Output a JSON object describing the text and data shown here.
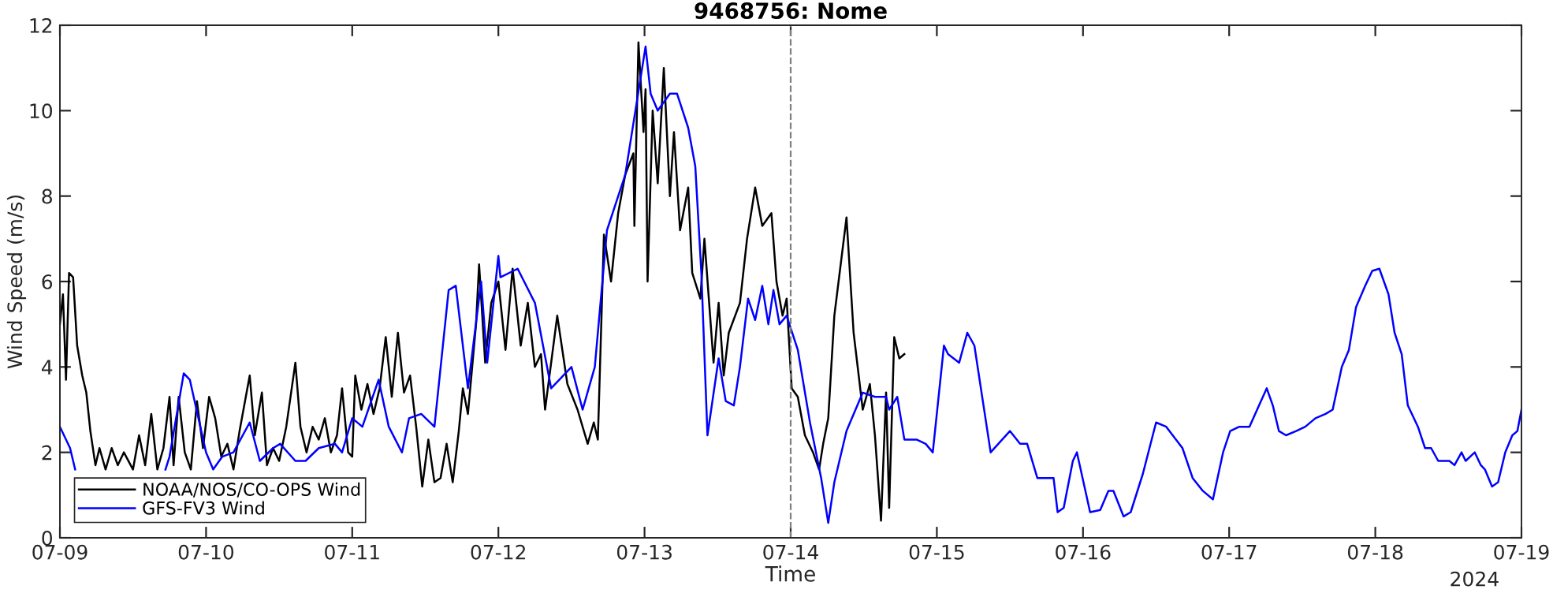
{
  "chart_data": {
    "type": "line",
    "title": "9468756: Nome",
    "xlabel": "Time",
    "ylabel": "Wind Speed (m/s)",
    "annotations": [
      "2024"
    ],
    "xlim": [
      "2024-07-09",
      "2024-07-19"
    ],
    "xticks": [
      {
        "value": "2024-07-09",
        "label": "07-09"
      },
      {
        "value": "2024-07-10",
        "label": "07-10"
      },
      {
        "value": "2024-07-11",
        "label": "07-11"
      },
      {
        "value": "2024-07-12",
        "label": "07-12"
      },
      {
        "value": "2024-07-13",
        "label": "07-13"
      },
      {
        "value": "2024-07-14",
        "label": "07-14"
      },
      {
        "value": "2024-07-15",
        "label": "07-15"
      },
      {
        "value": "2024-07-16",
        "label": "07-16"
      },
      {
        "value": "2024-07-17",
        "label": "07-17"
      },
      {
        "value": "2024-07-18",
        "label": "07-18"
      },
      {
        "value": "2024-07-19",
        "label": "07-19"
      }
    ],
    "ylim": [
      0,
      12
    ],
    "yticks": [
      0,
      2,
      4,
      6,
      8,
      10,
      12
    ],
    "grid": false,
    "legend": "bottom left",
    "line_style": "solid",
    "marker": "none",
    "ref_lines": [
      {
        "axis": "x",
        "value": "2024-07-14",
        "color": "#7f7f7f",
        "line_style": "dashed"
      }
    ],
    "series": [
      {
        "name": "NOAA/NOS/CO-OPS Wind",
        "color": "#000000",
        "x": [
          "2024-07-09T00:00",
          "2024-07-09T00:30",
          "2024-07-09T01:00",
          "2024-07-09T01:30",
          "2024-07-09T02:10",
          "2024-07-09T02:50",
          "2024-07-09T03:40",
          "2024-07-09T04:20",
          "2024-07-09T05:00",
          "2024-07-09T05:50",
          "2024-07-09T06:30",
          "2024-07-09T07:30",
          "2024-07-09T08:30",
          "2024-07-09T09:30",
          "2024-07-09T10:30",
          "2024-07-09T12:00",
          "2024-07-09T13:00",
          "2024-07-09T14:00",
          "2024-07-09T15:00",
          "2024-07-09T16:00",
          "2024-07-09T17:00",
          "2024-07-09T18:00",
          "2024-07-09T18:40",
          "2024-07-09T19:30",
          "2024-07-09T20:30",
          "2024-07-09T21:30",
          "2024-07-09T22:30",
          "2024-07-09T23:30",
          "2024-07-10T00:30",
          "2024-07-10T01:30",
          "2024-07-10T02:30",
          "2024-07-10T03:30",
          "2024-07-10T04:30",
          "2024-07-10T05:30",
          "2024-07-10T07:10",
          "2024-07-10T08:00",
          "2024-07-10T09:10",
          "2024-07-10T10:00",
          "2024-07-10T11:00",
          "2024-07-10T12:00",
          "2024-07-10T13:10",
          "2024-07-10T14:40",
          "2024-07-10T15:30",
          "2024-07-10T16:30",
          "2024-07-10T17:30",
          "2024-07-10T18:30",
          "2024-07-10T19:30",
          "2024-07-10T20:30",
          "2024-07-10T21:30",
          "2024-07-10T22:20",
          "2024-07-10T23:20",
          "2024-07-11T00:00",
          "2024-07-11T00:30",
          "2024-07-11T01:30",
          "2024-07-11T02:30",
          "2024-07-11T03:30",
          "2024-07-11T04:30",
          "2024-07-11T05:30",
          "2024-07-11T06:30",
          "2024-07-11T07:30",
          "2024-07-11T08:30",
          "2024-07-11T09:30",
          "2024-07-11T10:30",
          "2024-07-11T11:30",
          "2024-07-11T12:30",
          "2024-07-11T13:30",
          "2024-07-11T14:30",
          "2024-07-11T15:30",
          "2024-07-11T16:30",
          "2024-07-11T17:30",
          "2024-07-11T18:10",
          "2024-07-11T19:00",
          "2024-07-11T20:20",
          "2024-07-11T20:50",
          "2024-07-11T21:50",
          "2024-07-11T22:50",
          "2024-07-12T00:00",
          "2024-07-12T01:10",
          "2024-07-12T02:20",
          "2024-07-12T03:40",
          "2024-07-12T04:50",
          "2024-07-12T06:00",
          "2024-07-12T07:00",
          "2024-07-12T07:40",
          "2024-07-12T09:40",
          "2024-07-12T11:20",
          "2024-07-12T13:00",
          "2024-07-12T14:40",
          "2024-07-12T15:40",
          "2024-07-12T16:20",
          "2024-07-12T17:20",
          "2024-07-12T18:30",
          "2024-07-12T19:40",
          "2024-07-12T20:50",
          "2024-07-12T22:10",
          "2024-07-12T22:20",
          "2024-07-12T23:00",
          "2024-07-12T23:50",
          "2024-07-13T00:10",
          "2024-07-13T00:30",
          "2024-07-13T01:20",
          "2024-07-13T02:10",
          "2024-07-13T03:10",
          "2024-07-13T04:10",
          "2024-07-13T04:50",
          "2024-07-13T05:50",
          "2024-07-13T07:10",
          "2024-07-13T07:50",
          "2024-07-13T09:10",
          "2024-07-13T09:50",
          "2024-07-13T11:20",
          "2024-07-13T12:10",
          "2024-07-13T13:00",
          "2024-07-13T13:50",
          "2024-07-13T15:40",
          "2024-07-13T16:50",
          "2024-07-13T18:10",
          "2024-07-13T19:20",
          "2024-07-13T20:50",
          "2024-07-13T21:40",
          "2024-07-13T22:40",
          "2024-07-13T23:20",
          "2024-07-14T00:10",
          "2024-07-14T01:10",
          "2024-07-14T02:20",
          "2024-07-14T03:40",
          "2024-07-14T04:40",
          "2024-07-14T05:20",
          "2024-07-14T06:10",
          "2024-07-14T07:10",
          "2024-07-14T09:10",
          "2024-07-14T10:20",
          "2024-07-14T11:50",
          "2024-07-14T13:00",
          "2024-07-14T13:50",
          "2024-07-14T14:50",
          "2024-07-14T15:40",
          "2024-07-14T16:10",
          "2024-07-14T17:00",
          "2024-07-14T17:50",
          "2024-07-14T18:40"
        ],
        "values": [
          5.0,
          5.7,
          3.7,
          6.2,
          6.1,
          4.5,
          3.8,
          3.4,
          2.5,
          1.7,
          2.1,
          1.6,
          2.1,
          1.7,
          2.0,
          1.6,
          2.4,
          1.7,
          2.9,
          1.6,
          2.1,
          3.3,
          1.7,
          3.3,
          2.0,
          1.6,
          3.2,
          2.1,
          3.3,
          2.8,
          1.9,
          2.2,
          1.6,
          2.5,
          3.8,
          2.4,
          3.4,
          1.7,
          2.1,
          1.8,
          2.6,
          4.1,
          2.6,
          2.0,
          2.6,
          2.3,
          2.8,
          2.0,
          2.4,
          3.5,
          2.0,
          1.9,
          3.8,
          3.0,
          3.6,
          2.9,
          3.5,
          4.7,
          3.3,
          4.8,
          3.4,
          3.8,
          2.6,
          1.2,
          2.3,
          1.3,
          1.4,
          2.2,
          1.3,
          2.5,
          3.5,
          2.9,
          5.0,
          6.4,
          4.1,
          5.5,
          6.0,
          4.4,
          6.3,
          4.5,
          5.5,
          4.0,
          4.3,
          3.0,
          5.2,
          3.6,
          3.0,
          2.2,
          2.7,
          2.3,
          7.1,
          6.0,
          7.6,
          8.5,
          9.0,
          7.3,
          11.6,
          9.5,
          10.5,
          6.0,
          10.0,
          8.3,
          11.0,
          8.0,
          9.5,
          7.2,
          8.2,
          6.2,
          5.6,
          7.0,
          4.1,
          5.5,
          3.8,
          4.8,
          5.5,
          7.0,
          8.2,
          7.3,
          7.6,
          6.0,
          5.2,
          5.6,
          3.5,
          3.3,
          2.4,
          2.0,
          1.6,
          2.2,
          2.8,
          5.2,
          7.5,
          4.8,
          3.0,
          3.6,
          2.4,
          0.4,
          3.4,
          0.7,
          4.7,
          4.2,
          4.3
        ]
      },
      {
        "name": "GFS-FV3 Wind",
        "color": "#0000ff",
        "x": [
          "2024-07-09T00:00",
          "2024-07-09T01:40",
          "2024-07-09T02:30",
          "2024-07-09T10:00",
          "2024-07-09T17:20",
          "2024-07-09T18:00",
          "2024-07-09T20:20",
          "2024-07-09T21:20",
          "2024-07-10T00:00",
          "2024-07-10T01:10",
          "2024-07-10T02:40",
          "2024-07-10T04:30",
          "2024-07-10T07:10",
          "2024-07-10T08:50",
          "2024-07-10T11:00",
          "2024-07-10T12:10",
          "2024-07-10T14:40",
          "2024-07-10T16:20",
          "2024-07-10T18:30",
          "2024-07-10T21:10",
          "2024-07-10T22:20",
          "2024-07-11T00:00",
          "2024-07-11T01:40",
          "2024-07-11T04:20",
          "2024-07-11T06:00",
          "2024-07-11T08:10",
          "2024-07-11T09:20",
          "2024-07-11T11:20",
          "2024-07-11T13:30",
          "2024-07-11T15:50",
          "2024-07-11T17:00",
          "2024-07-11T19:00",
          "2024-07-11T21:10",
          "2024-07-11T22:10",
          "2024-07-12T00:00",
          "2024-07-12T00:20",
          "2024-07-12T03:10",
          "2024-07-12T06:00",
          "2024-07-12T08:40",
          "2024-07-12T12:00",
          "2024-07-12T13:50",
          "2024-07-12T15:50",
          "2024-07-12T17:50",
          "2024-07-12T20:50",
          "2024-07-13T00:10",
          "2024-07-13T01:00",
          "2024-07-13T02:10",
          "2024-07-13T04:10",
          "2024-07-13T05:20",
          "2024-07-13T07:10",
          "2024-07-13T08:20",
          "2024-07-13T09:20",
          "2024-07-13T10:20",
          "2024-07-13T12:10",
          "2024-07-13T13:20",
          "2024-07-13T14:40",
          "2024-07-13T15:40",
          "2024-07-13T17:00",
          "2024-07-13T18:10",
          "2024-07-13T19:20",
          "2024-07-13T20:20",
          "2024-07-13T21:10",
          "2024-07-13T22:10",
          "2024-07-13T23:20",
          "2024-07-14T01:10",
          "2024-07-14T03:10",
          "2024-07-14T05:00",
          "2024-07-14T06:10",
          "2024-07-14T07:10",
          "2024-07-14T09:10",
          "2024-07-14T11:50",
          "2024-07-14T13:50",
          "2024-07-14T15:40",
          "2024-07-14T16:10",
          "2024-07-14T17:30",
          "2024-07-14T18:40",
          "2024-07-14T20:40",
          "2024-07-14T22:10",
          "2024-07-14T23:20",
          "2024-07-15T01:10",
          "2024-07-15T01:50",
          "2024-07-15T03:40",
          "2024-07-15T05:00",
          "2024-07-15T06:10",
          "2024-07-15T08:50",
          "2024-07-15T12:00",
          "2024-07-15T13:40",
          "2024-07-15T14:50",
          "2024-07-15T16:30",
          "2024-07-15T19:10",
          "2024-07-15T19:50",
          "2024-07-15T20:50",
          "2024-07-15T22:20",
          "2024-07-15T23:00",
          "2024-07-16T01:10",
          "2024-07-16T02:50",
          "2024-07-16T04:10",
          "2024-07-16T05:00",
          "2024-07-16T06:40",
          "2024-07-16T07:50",
          "2024-07-16T09:50",
          "2024-07-16T12:00",
          "2024-07-16T13:40",
          "2024-07-16T16:20",
          "2024-07-16T18:00",
          "2024-07-16T19:40",
          "2024-07-16T21:20",
          "2024-07-16T23:00",
          "2024-07-17T00:10",
          "2024-07-17T01:40",
          "2024-07-17T03:20",
          "2024-07-17T06:10",
          "2024-07-17T07:10",
          "2024-07-17T08:10",
          "2024-07-17T09:20",
          "2024-07-17T11:00",
          "2024-07-17T12:30",
          "2024-07-17T14:10",
          "2024-07-17T15:50",
          "2024-07-17T17:00",
          "2024-07-17T18:30",
          "2024-07-17T19:40",
          "2024-07-17T20:50",
          "2024-07-17T22:20",
          "2024-07-17T23:30",
          "2024-07-18T00:40",
          "2024-07-18T02:10",
          "2024-07-18T03:10",
          "2024-07-18T04:20",
          "2024-07-18T05:20",
          "2024-07-18T07:00",
          "2024-07-18T08:10",
          "2024-07-18T09:10",
          "2024-07-18T10:20",
          "2024-07-18T12:10",
          "2024-07-18T13:00",
          "2024-07-18T14:10",
          "2024-07-18T14:50",
          "2024-07-18T16:20",
          "2024-07-18T17:20",
          "2024-07-18T18:00",
          "2024-07-18T19:10",
          "2024-07-18T20:10",
          "2024-07-18T21:20",
          "2024-07-18T22:30",
          "2024-07-18T23:20",
          "2024-07-19T00:00"
        ],
        "values": [
          2.6,
          2.1,
          1.6,
          null,
          1.6,
          1.9,
          3.85,
          3.7,
          2.0,
          1.6,
          1.9,
          2.0,
          2.7,
          1.8,
          2.1,
          2.2,
          1.8,
          1.8,
          2.1,
          2.2,
          2.0,
          2.8,
          2.6,
          3.7,
          2.6,
          2.0,
          2.8,
          2.9,
          2.6,
          5.8,
          5.9,
          3.5,
          6.0,
          4.1,
          6.6,
          6.1,
          6.3,
          5.5,
          3.5,
          4.0,
          3.0,
          4.0,
          7.2,
          8.5,
          11.5,
          10.4,
          10.0,
          10.4,
          10.4,
          9.6,
          8.7,
          6.2,
          2.4,
          4.2,
          3.2,
          3.1,
          4.0,
          5.6,
          5.1,
          5.9,
          5.0,
          5.8,
          5.0,
          5.2,
          4.4,
          2.7,
          1.4,
          0.35,
          1.3,
          2.5,
          3.4,
          3.3,
          3.3,
          3.0,
          3.3,
          2.3,
          2.3,
          2.2,
          2.0,
          4.5,
          4.3,
          4.1,
          4.8,
          4.5,
          2.0,
          2.5,
          2.2,
          2.2,
          1.4,
          1.4,
          0.6,
          0.7,
          1.8,
          2.0,
          0.6,
          0.65,
          1.1,
          1.1,
          0.5,
          0.6,
          1.5,
          2.7,
          2.6,
          2.1,
          1.4,
          1.1,
          0.9,
          2.0,
          2.5,
          2.6,
          2.6,
          3.5,
          3.1,
          2.5,
          2.4,
          2.5,
          2.6,
          2.8,
          2.9,
          3.0,
          4.0,
          4.4,
          5.4,
          5.9,
          6.25,
          6.3,
          5.7,
          4.8,
          4.3,
          3.1,
          2.6,
          2.1,
          2.1,
          1.8,
          1.8,
          1.7,
          2.0,
          1.8,
          2.0,
          1.7,
          1.6,
          1.2,
          1.3,
          2.0,
          2.4,
          2.5,
          3.0
        ]
      }
    ]
  }
}
